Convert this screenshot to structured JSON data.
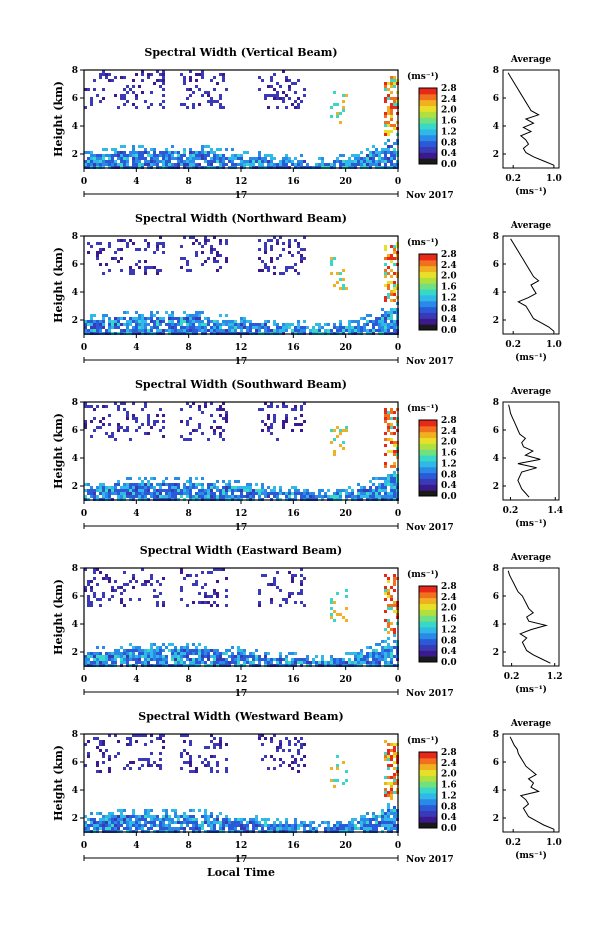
{
  "colors": {
    "scale": [
      "#1a1a1a",
      "#3a1a8c",
      "#3a3ab8",
      "#2a5ad8",
      "#2a8ae8",
      "#30b8e8",
      "#38d8c8",
      "#70e080",
      "#b0e040",
      "#e8e028",
      "#f0b020",
      "#f07020",
      "#e82818"
    ],
    "panel_bg": "#ffffff"
  },
  "shared": {
    "y_axis_label": "Height (km)",
    "x_axis_label": "Local Time",
    "date_label": "17",
    "month_label": "Nov 2017",
    "cbar_unit": "(ms⁻¹)",
    "profile_title": "Average",
    "profile_unit": "(ms⁻¹)"
  },
  "chart_data": [
    {
      "type": "heatmap",
      "title": "Spectral Width (Vertical Beam)",
      "xlabel": "",
      "ylabel": "Height (km)",
      "x_ticks": [
        "0",
        "4",
        "8",
        "12",
        "16",
        "20",
        "0"
      ],
      "y_ticks": [
        "2",
        "4",
        "6",
        "8"
      ],
      "xlim": [
        0,
        24
      ],
      "ylim": [
        1,
        8
      ],
      "colorbar": {
        "label": "(ms⁻¹)",
        "ticks": [
          "0.0",
          "0.4",
          "0.8",
          "1.2",
          "1.6",
          "2.0",
          "2.4",
          "2.8"
        ],
        "range": [
          0,
          2.8
        ]
      },
      "profile": {
        "title": "Average",
        "xlabel": "(ms⁻¹)",
        "x_ticks": [
          "0.2",
          "1.0"
        ],
        "xlim": [
          0.0,
          1.1
        ],
        "y_ticks": [
          "2",
          "4",
          "6",
          "8"
        ],
        "heights": [
          1.2,
          1.5,
          1.8,
          2.1,
          2.4,
          2.7,
          3.0,
          3.3,
          3.6,
          3.9,
          4.2,
          4.5,
          4.8,
          5.1,
          5.4,
          5.7,
          6.0,
          6.3,
          6.6,
          6.9,
          7.2,
          7.5,
          7.8
        ],
        "values": [
          1.0,
          0.8,
          0.6,
          0.45,
          0.4,
          0.5,
          0.45,
          0.35,
          0.55,
          0.4,
          0.6,
          0.45,
          0.7,
          0.55,
          0.5,
          0.45,
          0.4,
          0.35,
          0.3,
          0.25,
          0.2,
          0.15,
          0.1
        ]
      }
    },
    {
      "type": "heatmap",
      "title": "Spectral Width (Northward Beam)",
      "xlabel": "",
      "ylabel": "Height (km)",
      "x_ticks": [
        "0",
        "4",
        "8",
        "12",
        "16",
        "20",
        "0"
      ],
      "y_ticks": [
        "2",
        "4",
        "6",
        "8"
      ],
      "xlim": [
        0,
        24
      ],
      "ylim": [
        1,
        8
      ],
      "colorbar": {
        "label": "(ms⁻¹)",
        "ticks": [
          "0.0",
          "0.4",
          "0.8",
          "1.2",
          "1.6",
          "2.0",
          "2.4",
          "2.8"
        ],
        "range": [
          0,
          2.8
        ]
      },
      "profile": {
        "title": "Average",
        "xlabel": "(ms⁻¹)",
        "x_ticks": [
          "0.2",
          "1.0"
        ],
        "xlim": [
          0.0,
          1.1
        ],
        "y_ticks": [
          "2",
          "4",
          "6",
          "8"
        ],
        "heights": [
          1.2,
          1.5,
          1.8,
          2.1,
          2.4,
          2.7,
          3.0,
          3.3,
          3.6,
          3.9,
          4.2,
          4.5,
          4.8,
          5.1,
          5.4,
          5.7,
          6.0,
          6.3,
          6.6,
          6.9,
          7.2,
          7.5,
          7.8
        ],
        "values": [
          1.0,
          0.9,
          0.75,
          0.6,
          0.55,
          0.5,
          0.45,
          0.3,
          0.5,
          0.65,
          0.6,
          0.55,
          0.7,
          0.6,
          0.55,
          0.5,
          0.45,
          0.4,
          0.35,
          0.3,
          0.25,
          0.2,
          0.15
        ]
      }
    },
    {
      "type": "heatmap",
      "title": "Spectral Width (Southward Beam)",
      "xlabel": "",
      "ylabel": "Height (km)",
      "x_ticks": [
        "0",
        "4",
        "8",
        "12",
        "16",
        "20",
        "0"
      ],
      "y_ticks": [
        "2",
        "4",
        "6",
        "8"
      ],
      "xlim": [
        0,
        24
      ],
      "ylim": [
        1,
        8
      ],
      "colorbar": {
        "label": "(ms⁻¹)",
        "ticks": [
          "0.0",
          "0.4",
          "0.8",
          "1.2",
          "1.6",
          "2.0",
          "2.4",
          "2.8"
        ],
        "range": [
          0,
          2.8
        ]
      },
      "profile": {
        "title": "Average",
        "xlabel": "(ms⁻¹)",
        "x_ticks": [
          "0.2",
          "1.4"
        ],
        "xlim": [
          0.0,
          1.5
        ],
        "y_ticks": [
          "2",
          "4",
          "6",
          "8"
        ],
        "heights": [
          1.2,
          1.5,
          1.8,
          2.1,
          2.4,
          2.7,
          3.0,
          3.3,
          3.6,
          3.9,
          4.2,
          4.5,
          4.8,
          5.1,
          5.4,
          5.7,
          6.0,
          6.3,
          6.6,
          6.9,
          7.2,
          7.5,
          7.8
        ],
        "values": [
          0.7,
          0.6,
          0.5,
          0.45,
          0.4,
          0.45,
          0.5,
          0.9,
          0.4,
          1.0,
          0.6,
          0.8,
          0.55,
          0.5,
          0.6,
          0.45,
          0.4,
          0.35,
          0.3,
          0.25,
          0.2,
          0.18,
          0.15
        ]
      }
    },
    {
      "type": "heatmap",
      "title": "Spectral Width (Eastward Beam)",
      "xlabel": "",
      "ylabel": "Height (km)",
      "x_ticks": [
        "0",
        "4",
        "8",
        "12",
        "16",
        "20",
        "0"
      ],
      "y_ticks": [
        "2",
        "4",
        "6",
        "8"
      ],
      "xlim": [
        0,
        24
      ],
      "ylim": [
        1,
        8
      ],
      "colorbar": {
        "label": "(ms⁻¹)",
        "ticks": [
          "0.0",
          "0.4",
          "0.8",
          "1.2",
          "1.6",
          "2.0",
          "2.4",
          "2.8"
        ],
        "range": [
          0,
          2.8
        ]
      },
      "profile": {
        "title": "Average",
        "xlabel": "(ms⁻¹)",
        "x_ticks": [
          "0.2",
          "1.2"
        ],
        "xlim": [
          0.0,
          1.3
        ],
        "y_ticks": [
          "2",
          "4",
          "6",
          "8"
        ],
        "heights": [
          1.2,
          1.5,
          1.8,
          2.1,
          2.4,
          2.7,
          3.0,
          3.3,
          3.6,
          3.9,
          4.2,
          4.5,
          4.8,
          5.1,
          5.4,
          5.7,
          6.0,
          6.3,
          6.6,
          6.9,
          7.2,
          7.5,
          7.8
        ],
        "values": [
          1.1,
          0.9,
          0.7,
          0.55,
          0.5,
          0.45,
          0.55,
          0.4,
          0.65,
          1.0,
          0.6,
          0.55,
          0.7,
          0.6,
          0.55,
          0.5,
          0.45,
          0.35,
          0.3,
          0.25,
          0.2,
          0.15,
          0.12
        ]
      }
    },
    {
      "type": "heatmap",
      "title": "Spectral Width (Westward Beam)",
      "xlabel": "Local Time",
      "ylabel": "Height (km)",
      "x_ticks": [
        "0",
        "4",
        "8",
        "12",
        "16",
        "20",
        "0"
      ],
      "y_ticks": [
        "2",
        "4",
        "6",
        "8"
      ],
      "xlim": [
        0,
        24
      ],
      "ylim": [
        1,
        8
      ],
      "colorbar": {
        "label": "(ms⁻¹)",
        "ticks": [
          "0.0",
          "0.4",
          "0.8",
          "1.2",
          "1.6",
          "2.0",
          "2.4",
          "2.8"
        ],
        "range": [
          0,
          2.8
        ]
      },
      "profile": {
        "title": "Average",
        "xlabel": "(ms⁻¹)",
        "x_ticks": [
          "0.2",
          "1.0"
        ],
        "xlim": [
          0.0,
          1.1
        ],
        "y_ticks": [
          "2",
          "4",
          "6",
          "8"
        ],
        "heights": [
          1.2,
          1.5,
          1.8,
          2.1,
          2.4,
          2.7,
          3.0,
          3.3,
          3.6,
          3.9,
          4.2,
          4.5,
          4.8,
          5.1,
          5.4,
          5.7,
          6.0,
          6.3,
          6.6,
          6.9,
          7.2,
          7.5,
          7.8
        ],
        "values": [
          1.0,
          0.8,
          0.65,
          0.5,
          0.45,
          0.4,
          0.5,
          0.45,
          0.35,
          0.7,
          0.55,
          0.6,
          0.5,
          0.65,
          0.55,
          0.45,
          0.4,
          0.35,
          0.3,
          0.28,
          0.22,
          0.18,
          0.14
        ]
      }
    }
  ]
}
